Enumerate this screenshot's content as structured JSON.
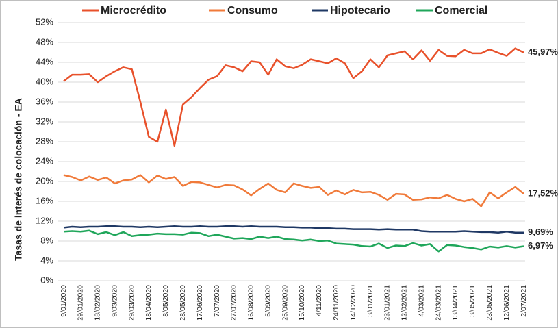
{
  "chart_data": {
    "type": "line",
    "y_label": "Tasas de interés de colocación - EA",
    "categories": [
      "9/01/2020",
      null,
      "29/01/2020",
      null,
      "18/02/2020",
      null,
      "9/03/2020",
      null,
      "29/03/2020",
      null,
      "18/04/2020",
      null,
      "8/05/2020",
      null,
      "28/05/2020",
      null,
      "17/06/2020",
      null,
      "7/07/2020",
      null,
      "27/07/2020",
      null,
      "16/08/2020",
      null,
      "5/09/2020",
      null,
      "25/09/2020",
      null,
      "15/10/2020",
      null,
      "4/11/2020",
      null,
      "24/11/2020",
      null,
      "14/12/2020",
      null,
      "3/01/2021",
      null,
      "23/01/2021",
      null,
      "12/02/2021",
      null,
      "4/03/2021",
      null,
      "24/03/2021",
      null,
      "13/04/2021",
      null,
      "3/05/2021",
      null,
      "23/05/2021",
      null,
      "12/06/2021",
      null,
      "2/07/2021"
    ],
    "series": [
      {
        "name": "Microcrédito",
        "color": "#e8512b",
        "values": [
          40.2,
          41.5,
          41.5,
          41.6,
          40.0,
          41.2,
          42.2,
          43.0,
          42.6,
          36.0,
          29.0,
          28.0,
          34.5,
          27.2,
          35.5,
          37.0,
          38.8,
          40.5,
          41.2,
          43.4,
          43.0,
          42.2,
          44.2,
          44.0,
          41.5,
          44.6,
          43.2,
          42.8,
          43.5,
          44.6,
          44.2,
          43.8,
          44.8,
          43.8,
          40.8,
          42.2,
          44.6,
          43.0,
          45.4,
          45.8,
          46.2,
          44.6,
          46.4,
          44.3,
          46.5,
          45.3,
          45.2,
          46.5,
          45.8,
          45.8,
          46.6,
          45.9,
          45.3,
          46.8,
          45.97
        ],
        "value_labels": [
          null,
          null,
          null,
          null,
          null,
          null,
          null,
          null,
          null,
          null,
          null,
          null,
          null,
          null,
          null,
          null,
          null,
          null,
          null,
          null,
          null,
          null,
          null,
          null,
          null,
          null,
          null,
          null,
          null,
          null,
          null,
          null,
          null,
          null,
          null,
          null,
          null,
          null,
          null,
          null,
          null,
          null,
          null,
          null,
          null,
          null,
          null,
          null,
          null,
          null,
          null,
          null,
          null,
          null,
          "45,97%"
        ]
      },
      {
        "name": "Consumo",
        "color": "#f07a3a",
        "values": [
          21.3,
          20.9,
          20.2,
          21.0,
          20.3,
          20.8,
          19.6,
          20.2,
          20.4,
          21.3,
          19.8,
          21.2,
          20.5,
          20.9,
          19.1,
          19.9,
          19.8,
          19.3,
          18.8,
          19.3,
          19.2,
          18.4,
          17.2,
          18.5,
          19.6,
          18.3,
          17.8,
          19.6,
          19.1,
          18.7,
          18.9,
          17.3,
          18.2,
          17.4,
          18.3,
          17.8,
          17.9,
          17.3,
          16.3,
          17.5,
          17.4,
          16.3,
          16.4,
          16.8,
          16.6,
          17.3,
          16.5,
          16.0,
          16.5,
          15.0,
          17.8,
          16.6,
          17.8,
          18.9,
          17.52
        ],
        "value_labels": [
          null,
          null,
          null,
          null,
          null,
          null,
          null,
          null,
          null,
          null,
          null,
          null,
          null,
          null,
          null,
          null,
          null,
          null,
          null,
          null,
          null,
          null,
          null,
          null,
          null,
          null,
          null,
          null,
          null,
          null,
          null,
          null,
          null,
          null,
          null,
          null,
          null,
          null,
          null,
          null,
          null,
          null,
          null,
          null,
          null,
          null,
          null,
          null,
          null,
          null,
          null,
          null,
          null,
          null,
          "17,52%"
        ]
      },
      {
        "name": "Hipotecario",
        "color": "#1f3864",
        "values": [
          10.7,
          10.9,
          10.8,
          10.9,
          10.9,
          11.0,
          11.0,
          10.9,
          10.9,
          10.8,
          10.9,
          10.8,
          10.9,
          11.0,
          10.9,
          10.9,
          11.0,
          10.9,
          10.9,
          11.0,
          11.0,
          10.9,
          11.0,
          10.9,
          10.9,
          10.9,
          10.8,
          10.8,
          10.7,
          10.7,
          10.6,
          10.6,
          10.5,
          10.5,
          10.4,
          10.4,
          10.4,
          10.3,
          10.4,
          10.3,
          10.3,
          10.3,
          10.0,
          9.9,
          9.9,
          9.9,
          9.9,
          10.0,
          9.9,
          9.8,
          9.8,
          9.7,
          9.9,
          9.7,
          9.69
        ],
        "value_labels": [
          null,
          null,
          null,
          null,
          null,
          null,
          null,
          null,
          null,
          null,
          null,
          null,
          null,
          null,
          null,
          null,
          null,
          null,
          null,
          null,
          null,
          null,
          null,
          null,
          null,
          null,
          null,
          null,
          null,
          null,
          null,
          null,
          null,
          null,
          null,
          null,
          null,
          null,
          null,
          null,
          null,
          null,
          null,
          null,
          null,
          null,
          null,
          null,
          null,
          null,
          null,
          null,
          null,
          null,
          "9,69%"
        ]
      },
      {
        "name": "Comercial",
        "color": "#1fa65a",
        "values": [
          9.9,
          10.0,
          9.9,
          10.1,
          9.4,
          9.8,
          9.2,
          9.8,
          9.0,
          9.2,
          9.3,
          9.5,
          9.4,
          9.4,
          9.3,
          9.7,
          9.6,
          9.0,
          9.3,
          8.9,
          8.5,
          8.6,
          8.4,
          8.9,
          8.6,
          8.9,
          8.4,
          8.3,
          8.1,
          8.3,
          8.0,
          8.1,
          7.5,
          7.4,
          7.3,
          7.0,
          6.9,
          7.5,
          6.6,
          7.1,
          7.0,
          7.6,
          7.1,
          7.4,
          5.9,
          7.2,
          7.1,
          6.8,
          6.6,
          6.3,
          6.9,
          6.7,
          7.0,
          6.7,
          6.97
        ],
        "value_labels": [
          null,
          null,
          null,
          null,
          null,
          null,
          null,
          null,
          null,
          null,
          null,
          null,
          null,
          null,
          null,
          null,
          null,
          null,
          null,
          null,
          null,
          null,
          null,
          null,
          null,
          null,
          null,
          null,
          null,
          null,
          null,
          null,
          null,
          null,
          null,
          null,
          null,
          null,
          null,
          null,
          null,
          null,
          null,
          null,
          null,
          null,
          null,
          null,
          null,
          null,
          null,
          null,
          null,
          null,
          "6,97%"
        ]
      }
    ],
    "ylim": [
      0,
      52
    ],
    "yticks": [
      {
        "value": 0,
        "label": "0%"
      },
      {
        "value": 4,
        "label": "4%"
      },
      {
        "value": 8,
        "label": "8%"
      },
      {
        "value": 12,
        "label": "12%"
      },
      {
        "value": 16,
        "label": "16%"
      },
      {
        "value": 20,
        "label": "20%"
      },
      {
        "value": 24,
        "label": "24%"
      },
      {
        "value": 28,
        "label": "28%"
      },
      {
        "value": 32,
        "label": "32%"
      },
      {
        "value": 36,
        "label": "36%"
      },
      {
        "value": 40,
        "label": "40%"
      },
      {
        "value": 44,
        "label": "44%"
      },
      {
        "value": 48,
        "label": "48%"
      },
      {
        "value": 52,
        "label": "52%"
      }
    ],
    "grid": true,
    "legend": "top"
  }
}
